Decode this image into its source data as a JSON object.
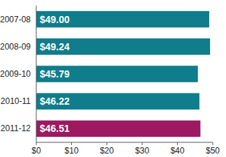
{
  "chart_data": {
    "type": "bar",
    "orientation": "horizontal",
    "categories": [
      "2007-08",
      "2008-09",
      "2009-10",
      "2010-11",
      "2011-12"
    ],
    "values": [
      49.0,
      49.24,
      45.79,
      46.22,
      46.51
    ],
    "value_labels": [
      "$49.00",
      "$49.24",
      "$45.79",
      "$46.22",
      "$46.51"
    ],
    "colors": [
      "#0f7d8b",
      "#0f7d8b",
      "#0f7d8b",
      "#0f7d8b",
      "#9c1a61"
    ],
    "data_labels": true,
    "grid": false,
    "xlim": [
      0,
      50
    ],
    "xticks": [
      {
        "value": 0,
        "label": "$0"
      },
      {
        "value": 10,
        "label": "$10"
      },
      {
        "value": 20,
        "label": "$20"
      },
      {
        "value": 30,
        "label": "$30"
      },
      {
        "value": 40,
        "label": "$40"
      },
      {
        "value": 50,
        "label": "$50"
      }
    ]
  }
}
